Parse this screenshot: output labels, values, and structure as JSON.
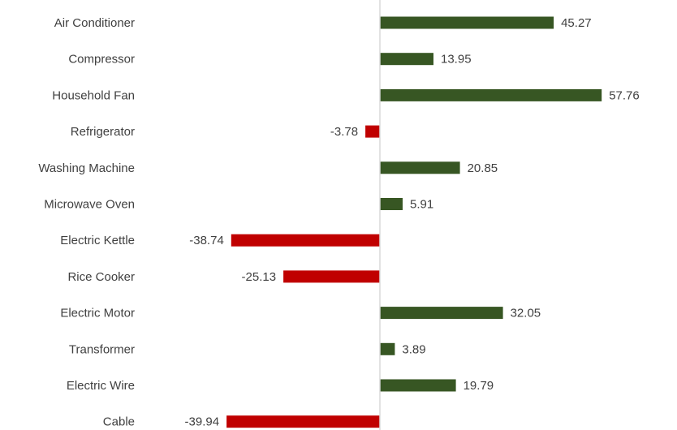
{
  "chart_data": {
    "type": "bar",
    "orientation": "horizontal",
    "categories": [
      "Air Conditioner",
      "Compressor",
      "Household Fan",
      "Refrigerator",
      "Washing Machine",
      "Microwave Oven",
      "Electric Kettle",
      "Rice Cooker",
      "Electric Motor",
      "Transformer",
      "Electric Wire",
      "Cable"
    ],
    "values": [
      45.27,
      13.95,
      57.76,
      -3.78,
      20.85,
      5.91,
      -38.74,
      -25.13,
      32.05,
      3.89,
      19.79,
      -39.94
    ],
    "value_labels": [
      "45.27",
      "13.95",
      "57.76",
      "-3.78",
      "20.85",
      "5.91",
      "-38.74",
      "-25.13",
      "32.05",
      "3.89",
      "19.79",
      "-39.94"
    ],
    "xlim": [
      -40,
      60
    ],
    "title": "",
    "xlabel": "",
    "ylabel": "",
    "grid": false,
    "legend": "none",
    "colors": {
      "positive": "#375623",
      "negative": "#c00000",
      "axis": "#d9d9d9",
      "text": "#404040"
    }
  }
}
